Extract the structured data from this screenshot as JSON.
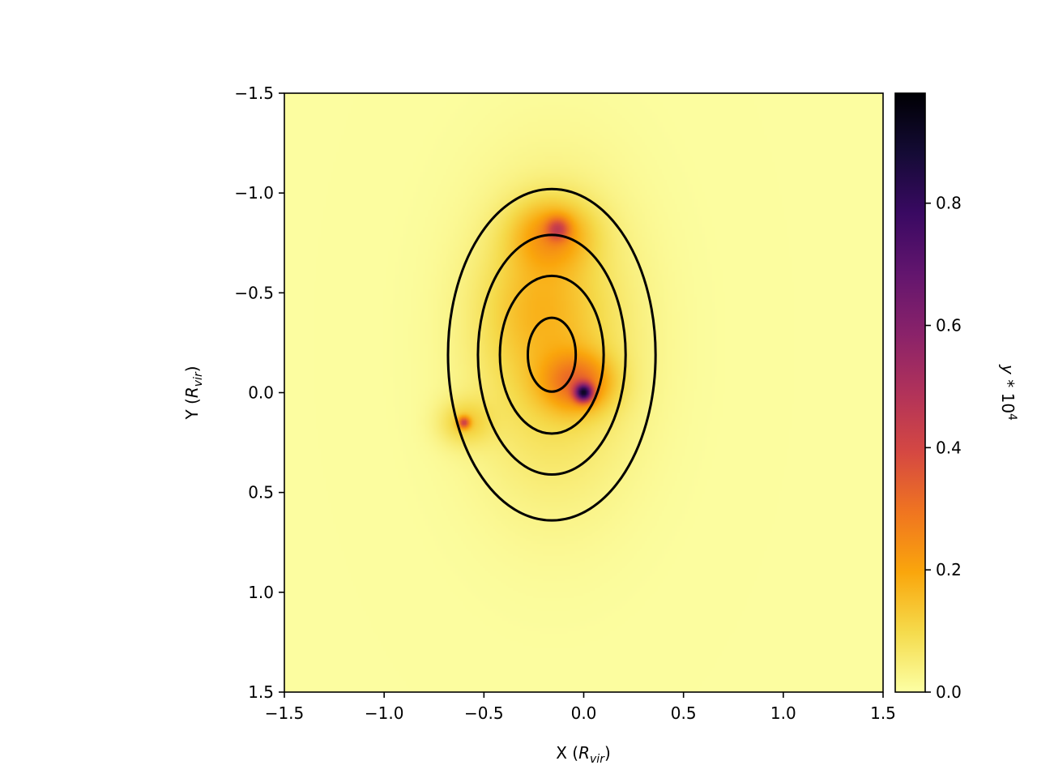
{
  "chart_data": {
    "type": "heatmap",
    "title": "",
    "xlabel": {
      "base": "X (",
      "sub_base": "R",
      "sub": "vir",
      "end": ")"
    },
    "ylabel": {
      "base": "Y (",
      "sub_base": "R",
      "sub": "vir",
      "end": ")"
    },
    "xlim": [
      -1.5,
      1.5
    ],
    "ylim": [
      1.5,
      -1.5
    ],
    "y_axis_inverted": true,
    "x_ticks": [
      {
        "value": -1.5,
        "label": "−1.5"
      },
      {
        "value": -1.0,
        "label": "−1.0"
      },
      {
        "value": -0.5,
        "label": "−0.5"
      },
      {
        "value": 0.0,
        "label": "0.0"
      },
      {
        "value": 0.5,
        "label": "0.5"
      },
      {
        "value": 1.0,
        "label": "1.0"
      },
      {
        "value": 1.5,
        "label": "1.5"
      }
    ],
    "y_ticks": [
      {
        "value": -1.5,
        "label": "−1.5"
      },
      {
        "value": -1.0,
        "label": "−1.0"
      },
      {
        "value": -0.5,
        "label": "−0.5"
      },
      {
        "value": 0.0,
        "label": "0.0"
      },
      {
        "value": 0.5,
        "label": "0.5"
      },
      {
        "value": 1.0,
        "label": "1.0"
      },
      {
        "value": 1.5,
        "label": "1.5"
      }
    ],
    "grid": false,
    "colormap": "inferno_r",
    "colorbar": {
      "label": "y * 10^4",
      "label_parts": {
        "var": "y",
        "op": " * 10",
        "exp": "4"
      },
      "range": [
        0.0,
        0.98
      ],
      "ticks": [
        {
          "value": 0.0,
          "label": "0.0"
        },
        {
          "value": 0.2,
          "label": "0.2"
        },
        {
          "value": 0.4,
          "label": "0.4"
        },
        {
          "value": 0.6,
          "label": "0.6"
        },
        {
          "value": 0.8,
          "label": "0.8"
        }
      ]
    },
    "background_value": 0.005,
    "features": [
      {
        "x": -0.15,
        "y": -0.25,
        "sx": 0.28,
        "sy": 0.5,
        "value": 0.12
      },
      {
        "x": -0.16,
        "y": -0.8,
        "sx": 0.14,
        "sy": 0.12,
        "value": 0.16
      },
      {
        "x": -0.13,
        "y": -0.82,
        "sx": 0.04,
        "sy": 0.04,
        "value": 0.22
      },
      {
        "x": -0.03,
        "y": -0.05,
        "sx": 0.12,
        "sy": 0.1,
        "value": 0.22
      },
      {
        "x": 0.0,
        "y": 0.0,
        "sx": 0.03,
        "sy": 0.03,
        "value": 0.65
      },
      {
        "x": -0.6,
        "y": 0.15,
        "sx": 0.09,
        "sy": 0.08,
        "value": 0.1
      },
      {
        "x": -0.6,
        "y": 0.15,
        "sx": 0.02,
        "sy": 0.02,
        "value": 0.3
      },
      {
        "x": -0.25,
        "y": -0.45,
        "sx": 0.18,
        "sy": 0.22,
        "value": 0.06
      }
    ],
    "contours": [
      {
        "cx": -0.16,
        "cy": -0.19,
        "rx": 0.12,
        "ry": 0.185
      },
      {
        "cx": -0.16,
        "cy": -0.19,
        "rx": 0.26,
        "ry": 0.395
      },
      {
        "cx": -0.16,
        "cy": -0.19,
        "rx": 0.37,
        "ry": 0.6
      },
      {
        "cx": -0.16,
        "cy": -0.19,
        "rx": 0.52,
        "ry": 0.83
      }
    ],
    "contour_color": "#000000"
  }
}
